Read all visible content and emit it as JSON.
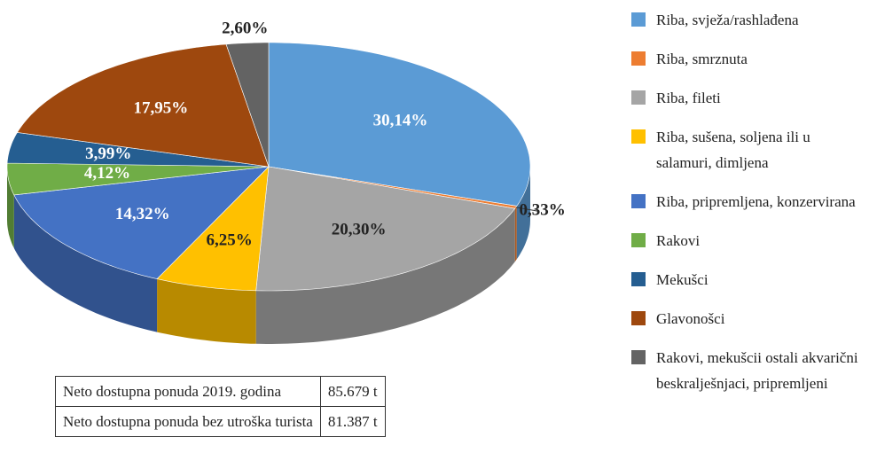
{
  "chart_data": {
    "type": "pie3d",
    "categories": [
      "Riba, svježa/rashlađena",
      "Riba, smrznuta",
      "Riba, fileti",
      "Riba, sušena, soljena ili u salamuri, dimljena",
      "Riba, pripremljena, konzervirana",
      "Rakovi",
      "Mekušci",
      "Glavonošci",
      "Rakovi, mekušcii ostali akvarični beskralješnjaci, pripremljeni"
    ],
    "values": [
      30.14,
      0.33,
      20.3,
      6.25,
      14.32,
      4.12,
      3.99,
      17.95,
      2.6
    ],
    "value_labels": [
      "30,14%",
      "0,33%",
      "20,30%",
      "6,25%",
      "14,32%",
      "4,12%",
      "3,99%",
      "17,95%",
      "2,60%"
    ],
    "colors": [
      "#5b9bd5",
      "#ed7d31",
      "#a5a5a5",
      "#ffc000",
      "#4472c4",
      "#70ad47",
      "#255e91",
      "#9e480e",
      "#636363"
    ],
    "legend": "right"
  },
  "table": {
    "rows": [
      [
        "Neto dostupna ponuda 2019. godina",
        "85.679 t"
      ],
      [
        "Neto dostupna ponuda bez utroška turista",
        "81.387 t"
      ]
    ]
  }
}
